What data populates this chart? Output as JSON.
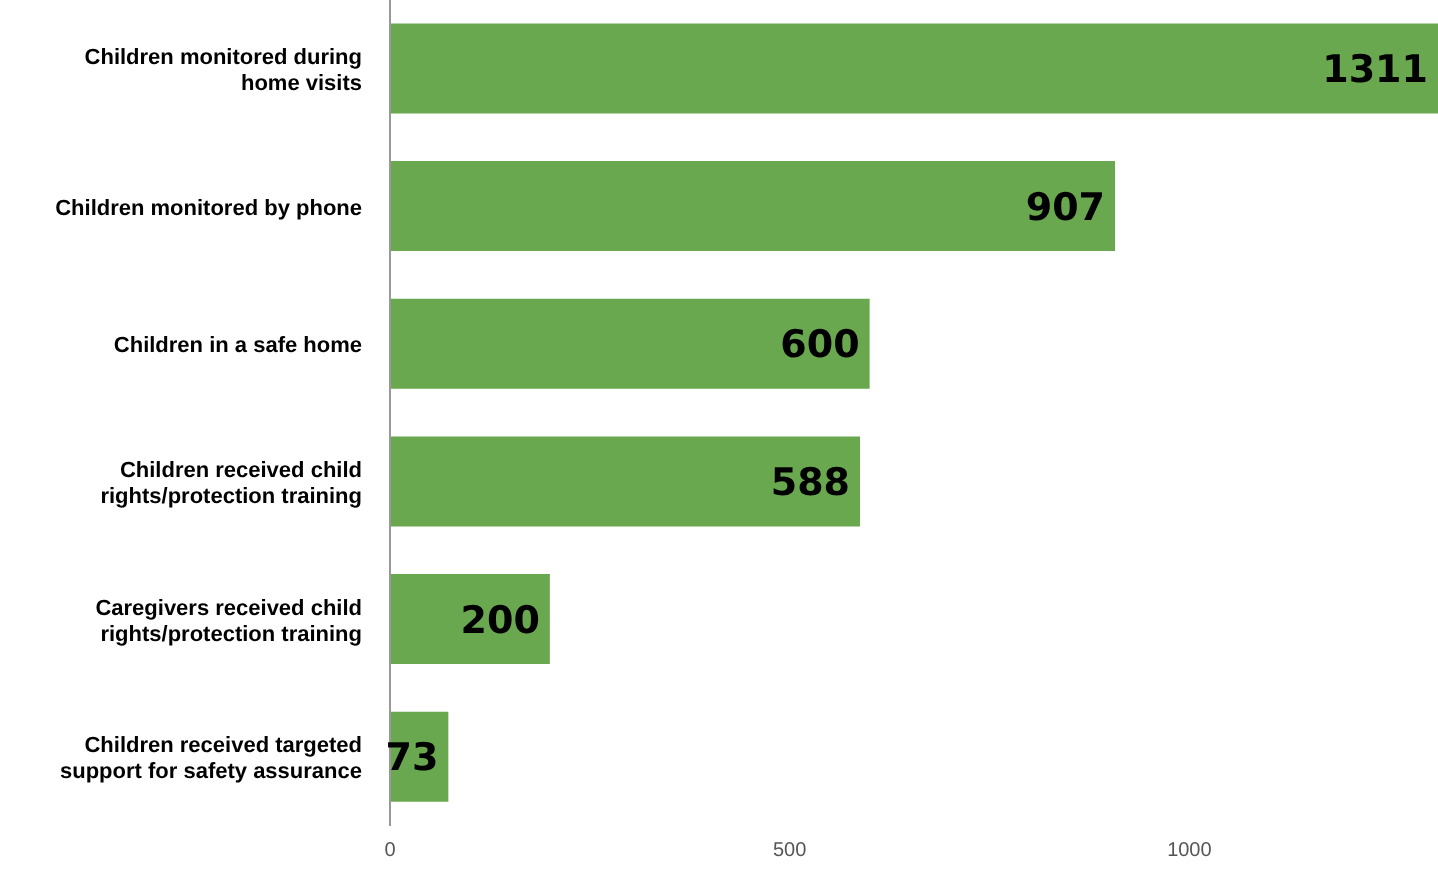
{
  "chart_data": {
    "type": "bar",
    "orientation": "horizontal",
    "categories": [
      "Children monitored during home visits",
      "Children monitored by phone",
      "Children in a safe home",
      "Children received child rights/protection training",
      "Caregivers received child rights/protection training",
      "Children received targeted support for safety assurance"
    ],
    "values": [
      1311,
      907,
      600,
      588,
      200,
      73
    ],
    "color": "#6aa84f",
    "xlim": [
      0,
      1311
    ],
    "xticks": [
      0,
      500,
      1000
    ],
    "data_labels": true,
    "grid": false,
    "legend": false
  }
}
